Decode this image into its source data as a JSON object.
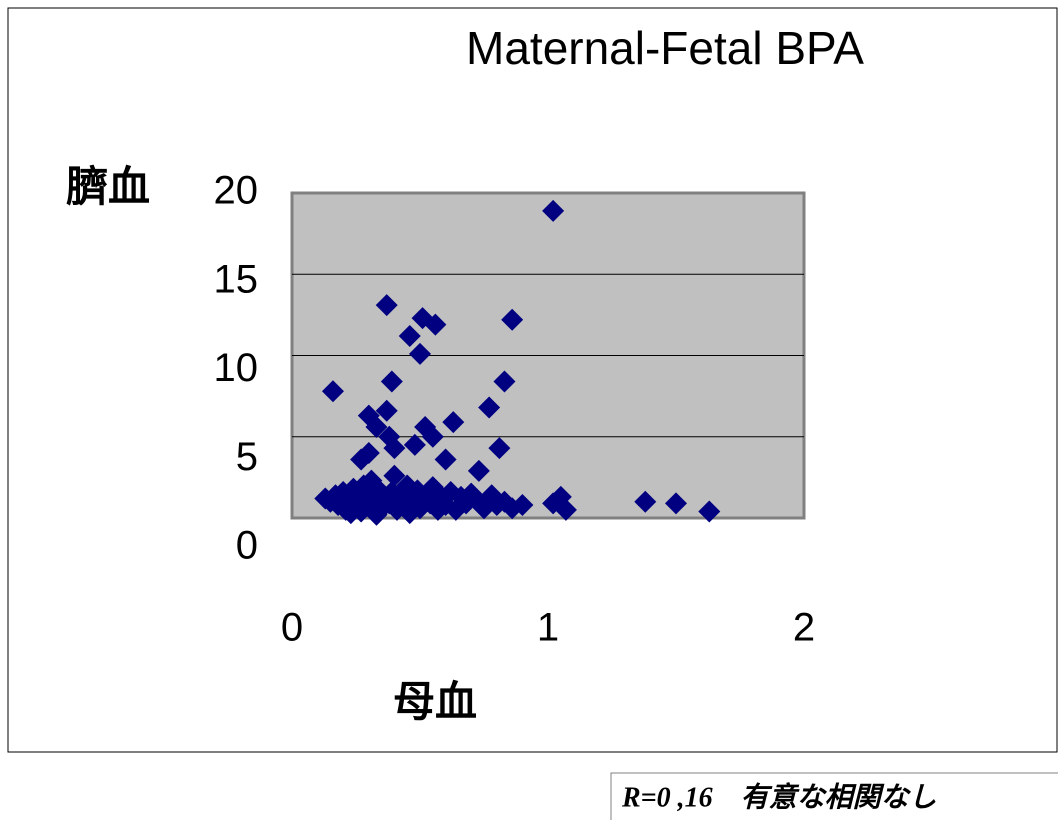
{
  "chart_data": {
    "type": "scatter",
    "title": "Maternal-Fetal BPA",
    "x_label": "母血",
    "y_label": "臍血",
    "annotation": "R=0 ,16　有意な相関なし",
    "color": "#000080",
    "x": [
      0.16,
      1.02,
      0.37,
      0.51,
      0.56,
      0.46,
      0.5,
      0.86,
      0.39,
      0.83,
      0.77,
      0.63,
      0.52,
      0.55,
      0.37,
      0.3,
      0.33,
      0.38,
      0.4,
      0.48,
      0.81,
      0.6,
      0.27,
      0.3,
      0.4,
      0.73,
      1.38,
      1.5,
      1.63,
      1.05,
      1.07,
      0.13,
      0.15,
      0.17,
      0.18,
      0.2,
      0.21,
      0.22,
      0.23,
      0.24,
      0.25,
      0.26,
      0.27,
      0.28,
      0.29,
      0.3,
      0.31,
      0.32,
      0.33,
      0.34,
      0.35,
      0.36,
      0.38,
      0.39,
      0.41,
      0.42,
      0.43,
      0.45,
      0.46,
      0.47,
      0.49,
      0.5,
      0.52,
      0.54,
      0.55,
      0.57,
      0.59,
      0.6,
      0.62,
      0.64,
      0.66,
      0.68,
      0.7,
      0.72,
      0.75,
      0.78,
      0.8,
      0.83,
      0.86,
      0.9,
      1.02
    ],
    "values": [
      7.8,
      18.9,
      13.1,
      12.3,
      11.9,
      11.2,
      10.1,
      12.2,
      8.4,
      8.4,
      6.8,
      5.9,
      5.6,
      5.0,
      6.6,
      6.3,
      5.6,
      5.0,
      4.3,
      4.5,
      4.3,
      3.6,
      3.6,
      4.0,
      2.6,
      2.9,
      1.0,
      0.9,
      0.4,
      1.3,
      0.5,
      1.2,
      1.0,
      1.4,
      0.8,
      1.6,
      0.5,
      1.1,
      0.3,
      1.8,
      0.9,
      1.3,
      0.4,
      2.0,
      1.5,
      0.7,
      2.3,
      1.0,
      0.2,
      1.7,
      0.6,
      1.2,
      0.9,
      1.6,
      0.5,
      1.3,
      0.8,
      2.0,
      0.3,
      1.1,
      1.7,
      0.6,
      1.4,
      0.9,
      1.9,
      0.5,
      1.2,
      0.8,
      1.6,
      0.5,
      1.3,
      0.9,
      1.5,
      1.1,
      0.6,
      1.4,
      0.8,
      1.0,
      0.6,
      0.8,
      0.9
    ],
    "xlim": [
      0,
      2
    ],
    "xticks": [
      0,
      1,
      2
    ],
    "ylim": [
      0,
      20
    ],
    "yticks": [
      0,
      5,
      10,
      15,
      20
    ],
    "grid": true
  }
}
